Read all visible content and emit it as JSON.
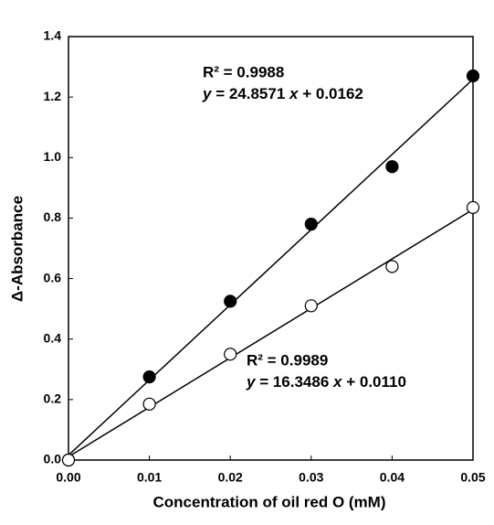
{
  "chart_data": {
    "type": "scatter",
    "x_label": "Concentration of oil red O (mM)",
    "y_label": "Δ-Absorbance",
    "xlim": [
      0,
      0.05
    ],
    "ylim": [
      0,
      1.4
    ],
    "xticks": [
      {
        "value": 0,
        "label": "0.00"
      },
      {
        "value": 0.01,
        "label": "0.01"
      },
      {
        "value": 0.02,
        "label": "0.02"
      },
      {
        "value": 0.03,
        "label": "0.03"
      },
      {
        "value": 0.04,
        "label": "0.04"
      },
      {
        "value": 0.05,
        "label": "0.05"
      }
    ],
    "yticks": [
      {
        "value": 0,
        "label": "0.0"
      },
      0.2,
      0.4,
      0.6,
      0.8,
      {
        "value": 1,
        "label": "1.0"
      },
      1.2,
      1.4
    ],
    "series": [
      {
        "color": "#000000",
        "marker": "filled",
        "x": [
          0,
          0.01,
          0.02,
          0.03,
          0.04,
          0.05
        ],
        "values": [
          0,
          0.275,
          0.525,
          0.78,
          0.97,
          1.27
        ],
        "fit": {
          "slope": 24.8571,
          "intercept": 0.0162
        },
        "r2_text": "R² = 0.9988",
        "equation": [
          "y",
          " = 24.8571 ",
          "x",
          " + 0.0162"
        ]
      },
      {
        "color": "#000000",
        "marker": "open",
        "x": [
          0,
          0.01,
          0.02,
          0.03,
          0.04,
          0.05
        ],
        "values": [
          0,
          0.185,
          0.35,
          0.51,
          0.64,
          0.835
        ],
        "fit": {
          "slope": 16.3486,
          "intercept": 0.011
        },
        "r2_text": "R² = 0.9989",
        "equation": [
          "y",
          " = 16.3486 ",
          "x",
          " + 0.0110"
        ]
      }
    ]
  }
}
